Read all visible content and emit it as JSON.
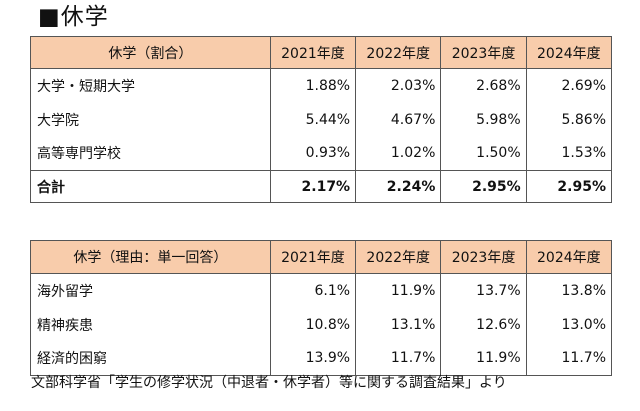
{
  "title": "■休学",
  "table1": {
    "header": [
      "休学（割合）",
      "2021年度",
      "2022年度",
      "2023年度",
      "2024年度"
    ],
    "rows": [
      {
        "label": "大学・短期大学",
        "values": [
          "1.88%",
          "2.03%",
          "2.68%",
          "2.69%"
        ]
      },
      {
        "label": "大学院",
        "values": [
          "5.44%",
          "4.67%",
          "5.98%",
          "5.86%"
        ]
      },
      {
        "label": "高等専門学校",
        "values": [
          "0.93%",
          "1.02%",
          "1.50%",
          "1.53%"
        ]
      }
    ],
    "total": {
      "label": "合計",
      "values": [
        "2.17%",
        "2.24%",
        "2.95%",
        "2.95%"
      ]
    }
  },
  "table2": {
    "header": [
      "休学（理由：単一回答）",
      "2021年度",
      "2022年度",
      "2023年度",
      "2024年度"
    ],
    "rows": [
      {
        "label": "海外留学",
        "values": [
          "6.1%",
          "11.9%",
          "13.7%",
          "13.8%"
        ]
      },
      {
        "label": "精神疾患",
        "values": [
          "10.8%",
          "13.1%",
          "12.6%",
          "13.0%"
        ]
      },
      {
        "label": "経済的困窮",
        "values": [
          "13.9%",
          "11.7%",
          "11.9%",
          "11.7%"
        ]
      }
    ]
  },
  "source": "文部科学省「学生の修学状況（中退者・休学者）等に関する調査結果」より",
  "colors": {
    "header_bg": "#f8ccab",
    "border": "#555555"
  }
}
